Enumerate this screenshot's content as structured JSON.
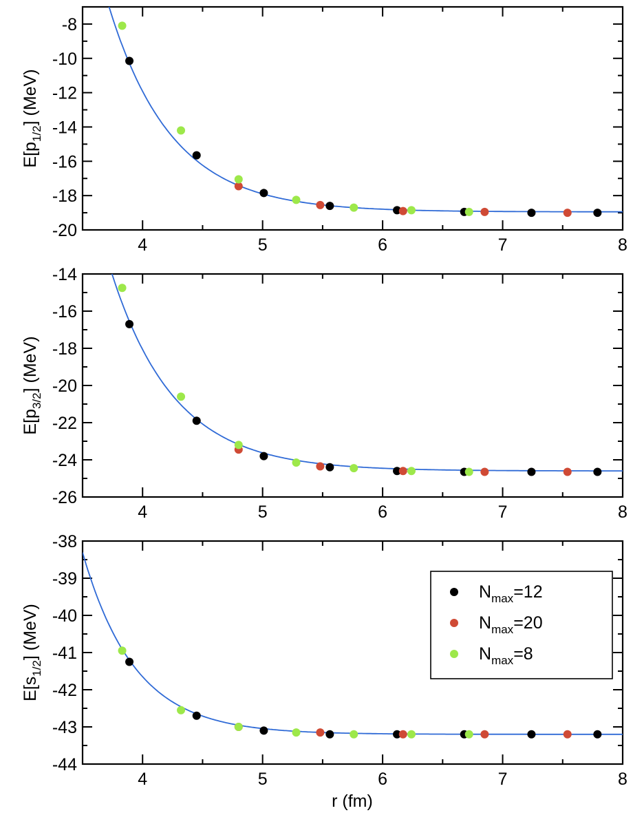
{
  "colors": {
    "nmax12": "#000000",
    "nmax20": "#cf4a35",
    "nmax8": "#9de84a",
    "fit": "#2f6ad6"
  },
  "x_axis": {
    "label": "r (fm)",
    "range": [
      3.5,
      8
    ],
    "ticks": [
      "4",
      "5",
      "6",
      "7",
      "8"
    ]
  },
  "legend": {
    "position": "right",
    "entries": [
      {
        "series": "nmax12",
        "prefix": "N",
        "sub": "max",
        "suffix": "=12"
      },
      {
        "series": "nmax20",
        "prefix": "N",
        "sub": "max",
        "suffix": "=20"
      },
      {
        "series": "nmax8",
        "prefix": "N",
        "sub": "max",
        "suffix": "=8"
      }
    ]
  },
  "panels": [
    {
      "ylabel_parts": {
        "pre": "E[p",
        "sub": "1/2",
        "post": "] (MeV)"
      },
      "yticks": [
        "-8",
        "-10",
        "-12",
        "-14",
        "-16",
        "-18",
        "-20"
      ]
    },
    {
      "ylabel_parts": {
        "pre": "E[p",
        "sub": "3/2",
        "post": "] (MeV)"
      },
      "yticks": [
        "-14",
        "-16",
        "-18",
        "-20",
        "-22",
        "-24",
        "-26"
      ]
    },
    {
      "ylabel_parts": {
        "pre": "E[s",
        "sub": "1/2",
        "post": "] (MeV)"
      },
      "yticks": [
        "-38",
        "-39",
        "-40",
        "-41",
        "-42",
        "-43",
        "-44"
      ]
    }
  ],
  "chart_data": [
    {
      "type": "scatter",
      "ylabel": "E[p1/2] (MeV)",
      "xlabel": "",
      "xlim": [
        3.5,
        8
      ],
      "ylim": [
        -20,
        -7
      ],
      "fit": {
        "asymptote": -18.95,
        "amplitude": 8.5,
        "decay": 1.9,
        "x0": 3.9
      },
      "series": [
        {
          "key": "nmax12",
          "x": [
            3.89,
            4.45,
            5.01,
            5.56,
            6.12,
            6.68,
            7.24,
            7.79
          ],
          "y": [
            -10.15,
            -15.65,
            -17.85,
            -18.6,
            -18.85,
            -18.95,
            -19.0,
            -19.0
          ]
        },
        {
          "key": "nmax20",
          "x": [
            4.8,
            5.48,
            6.17,
            6.85,
            7.54
          ],
          "y": [
            -17.45,
            -18.55,
            -18.9,
            -18.95,
            -19.0
          ]
        },
        {
          "key": "nmax8",
          "x": [
            3.83,
            4.32,
            4.8,
            5.28,
            5.76,
            6.24,
            6.72
          ],
          "y": [
            -8.1,
            -14.2,
            -17.05,
            -18.25,
            -18.7,
            -18.85,
            -18.95
          ]
        }
      ]
    },
    {
      "type": "scatter",
      "ylabel": "E[p3/2] (MeV)",
      "xlabel": "",
      "xlim": [
        3.5,
        8
      ],
      "ylim": [
        -26,
        -14
      ],
      "fit": {
        "asymptote": -24.6,
        "amplitude": 7.9,
        "decay": 1.9,
        "x0": 3.9
      },
      "series": [
        {
          "key": "nmax12",
          "x": [
            3.89,
            4.45,
            5.01,
            5.56,
            6.12,
            6.68,
            7.24,
            7.79
          ],
          "y": [
            -16.7,
            -21.9,
            -23.8,
            -24.4,
            -24.6,
            -24.65,
            -24.65,
            -24.65
          ]
        },
        {
          "key": "nmax20",
          "x": [
            4.8,
            5.48,
            6.17,
            6.85,
            7.54
          ],
          "y": [
            -23.45,
            -24.35,
            -24.6,
            -24.65,
            -24.65
          ]
        },
        {
          "key": "nmax8",
          "x": [
            3.83,
            4.32,
            4.8,
            5.28,
            5.76,
            6.24,
            6.72
          ],
          "y": [
            -14.75,
            -20.6,
            -23.2,
            -24.15,
            -24.45,
            -24.6,
            -24.65
          ]
        }
      ]
    },
    {
      "type": "scatter",
      "ylabel": "E[s1/2] (MeV)",
      "xlabel": "r (fm)",
      "xlim": [
        3.5,
        8
      ],
      "ylim": [
        -44,
        -38
      ],
      "fit": {
        "asymptote": -43.2,
        "amplitude": 1.95,
        "decay": 2.3,
        "x0": 3.9
      },
      "series": [
        {
          "key": "nmax12",
          "x": [
            3.89,
            4.45,
            5.01,
            5.56,
            6.12,
            6.68,
            7.24,
            7.79
          ],
          "y": [
            -41.25,
            -42.7,
            -43.1,
            -43.2,
            -43.2,
            -43.2,
            -43.2,
            -43.2
          ]
        },
        {
          "key": "nmax20",
          "x": [
            4.8,
            5.48,
            6.17,
            6.85,
            7.54
          ],
          "y": [
            -43.0,
            -43.15,
            -43.2,
            -43.2,
            -43.2
          ]
        },
        {
          "key": "nmax8",
          "x": [
            3.83,
            4.32,
            4.8,
            5.28,
            5.76,
            6.24,
            6.72
          ],
          "y": [
            -40.95,
            -42.55,
            -43.0,
            -43.15,
            -43.2,
            -43.2,
            -43.2
          ]
        }
      ]
    }
  ]
}
